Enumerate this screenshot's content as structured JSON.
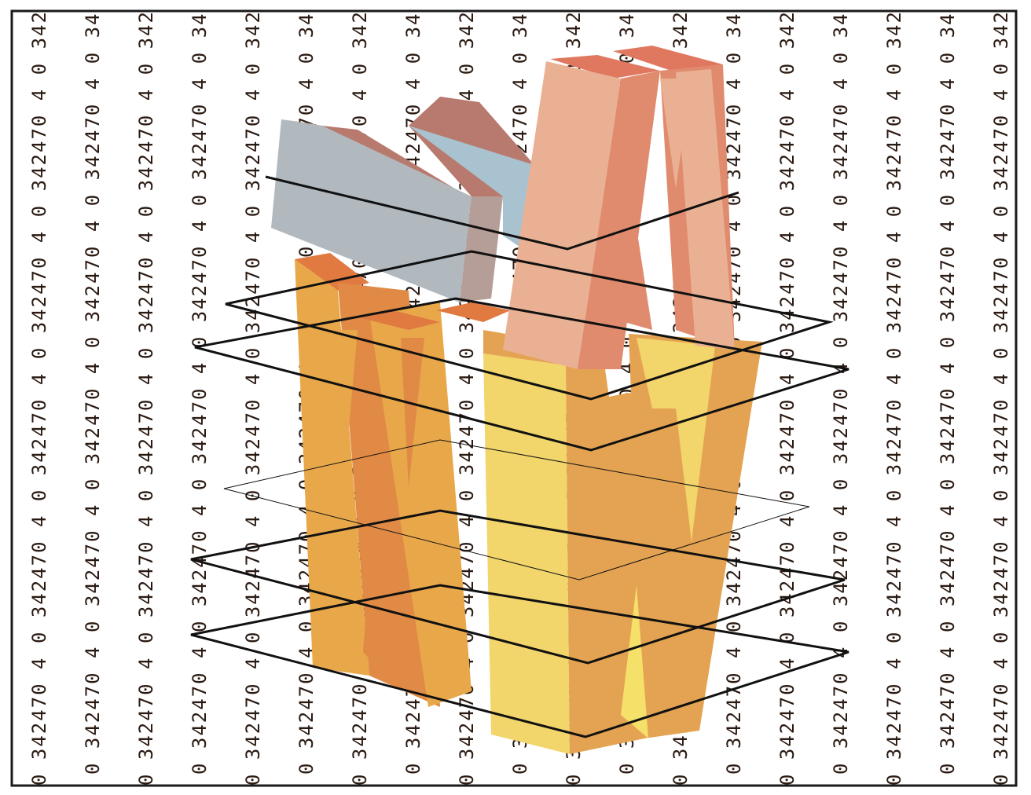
{
  "pattern": {
    "text": "0 342470 4 0 342470 4 0 342470 4 0 342470 4 0 342470 4 0 342470 4 0 342470 4 0 342470 4 0 342470 4 0 342470 4 0 342470 4"
  },
  "colors": {
    "border": "#1a1a1a",
    "orange_light": "#e8a84a",
    "orange_dark": "#e08a45",
    "orange_top": "#e07a40",
    "yellow_light": "#f2d56b",
    "yellow_face": "#f5e06a",
    "salmon_face": "#eab093",
    "salmon_dark": "#e08b6e",
    "salmon_top": "#e07860",
    "gray_face": "#b1b9bf",
    "gray_side": "#b69e98",
    "rose_top": "#b87a6e",
    "outline": "#111111"
  }
}
